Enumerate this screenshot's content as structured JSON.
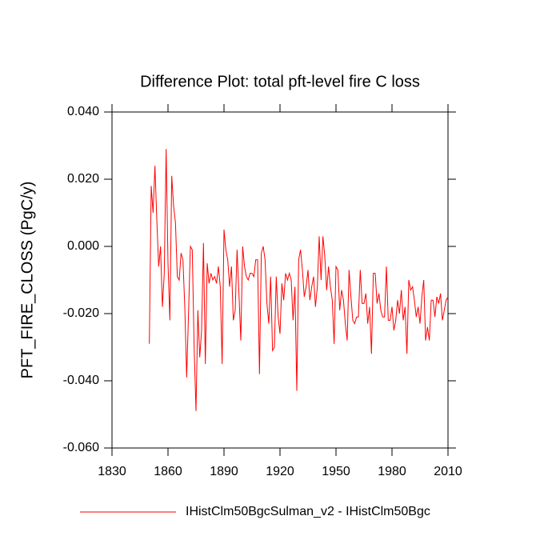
{
  "chart_data": {
    "type": "line",
    "title": "Difference Plot: total pft-level fire C loss",
    "y_label": "PFT_FIRE_CLOSS  (PgC/y)",
    "x": [
      1850,
      1851,
      1852,
      1853,
      1854,
      1855,
      1856,
      1857,
      1858,
      1859,
      1860,
      1861,
      1862,
      1863,
      1864,
      1865,
      1866,
      1867,
      1868,
      1869,
      1870,
      1871,
      1872,
      1873,
      1874,
      1875,
      1876,
      1877,
      1878,
      1879,
      1880,
      1881,
      1882,
      1883,
      1884,
      1885,
      1886,
      1887,
      1888,
      1889,
      1890,
      1891,
      1892,
      1893,
      1894,
      1895,
      1896,
      1897,
      1898,
      1899,
      1900,
      1901,
      1902,
      1903,
      1904,
      1905,
      1906,
      1907,
      1908,
      1909,
      1910,
      1911,
      1912,
      1913,
      1914,
      1915,
      1916,
      1917,
      1918,
      1919,
      1920,
      1921,
      1922,
      1923,
      1924,
      1925,
      1926,
      1927,
      1928,
      1929,
      1930,
      1931,
      1932,
      1933,
      1934,
      1935,
      1936,
      1937,
      1938,
      1939,
      1940,
      1941,
      1942,
      1943,
      1944,
      1945,
      1946,
      1947,
      1948,
      1949,
      1950,
      1951,
      1952,
      1953,
      1954,
      1955,
      1956,
      1957,
      1958,
      1959,
      1960,
      1961,
      1962,
      1963,
      1964,
      1965,
      1966,
      1967,
      1968,
      1969,
      1970,
      1971,
      1972,
      1973,
      1974,
      1975,
      1976,
      1977,
      1978,
      1979,
      1980,
      1981,
      1982,
      1983,
      1984,
      1985,
      1986,
      1987,
      1988,
      1989,
      1990,
      1991,
      1992,
      1993,
      1994,
      1995,
      1996,
      1997,
      1998,
      1999,
      2000,
      2001,
      2002,
      2003,
      2004,
      2005,
      2006,
      2007,
      2008,
      2009,
      2010
    ],
    "series": [
      {
        "name": "IHistClm50BgcSulman_v2 - IHistClm50Bgc",
        "color": "#ff0000",
        "values": [
          -0.029,
          0.018,
          0.01,
          0.024,
          0.008,
          -0.006,
          0.0,
          -0.018,
          -0.008,
          0.029,
          -0.005,
          -0.022,
          0.021,
          0.012,
          0.007,
          -0.009,
          -0.01,
          -0.002,
          -0.004,
          -0.018,
          -0.039,
          -0.02,
          0.0,
          -0.001,
          -0.03,
          -0.049,
          -0.019,
          -0.033,
          -0.025,
          0.001,
          -0.035,
          -0.005,
          -0.011,
          -0.008,
          -0.01,
          -0.009,
          -0.011,
          -0.006,
          -0.012,
          -0.035,
          0.005,
          -0.001,
          -0.004,
          -0.012,
          -0.006,
          -0.022,
          -0.019,
          -0.001,
          -0.014,
          -0.028,
          0.0,
          -0.006,
          -0.009,
          -0.01,
          -0.008,
          -0.008,
          -0.009,
          -0.004,
          -0.004,
          -0.038,
          -0.002,
          0.0,
          -0.004,
          -0.017,
          -0.023,
          -0.009,
          -0.031,
          -0.03,
          -0.009,
          -0.021,
          -0.026,
          -0.011,
          -0.016,
          -0.008,
          -0.01,
          -0.008,
          -0.01,
          -0.022,
          -0.012,
          -0.043,
          -0.004,
          -0.001,
          -0.007,
          -0.015,
          -0.012,
          -0.007,
          -0.016,
          -0.012,
          -0.009,
          -0.018,
          -0.012,
          0.003,
          -0.01,
          0.003,
          -0.003,
          -0.013,
          -0.006,
          -0.012,
          -0.016,
          -0.029,
          -0.006,
          -0.007,
          -0.019,
          -0.013,
          -0.016,
          -0.023,
          -0.028,
          -0.007,
          -0.015,
          -0.022,
          -0.023,
          -0.021,
          -0.021,
          -0.007,
          -0.017,
          -0.017,
          -0.014,
          -0.023,
          -0.018,
          -0.032,
          -0.008,
          -0.008,
          -0.017,
          -0.014,
          -0.019,
          -0.021,
          -0.021,
          -0.006,
          -0.022,
          -0.022,
          -0.018,
          -0.025,
          -0.022,
          -0.016,
          -0.02,
          -0.013,
          -0.022,
          -0.018,
          -0.032,
          -0.01,
          -0.013,
          -0.012,
          -0.016,
          -0.021,
          -0.018,
          -0.023,
          -0.015,
          -0.01,
          -0.028,
          -0.024,
          -0.028,
          -0.016,
          -0.016,
          -0.021,
          -0.015,
          -0.017,
          -0.014,
          -0.022,
          -0.019,
          -0.016,
          -0.015
        ]
      }
    ],
    "xlim": [
      1830,
      2010
    ],
    "xticks": [
      1830,
      1860,
      1890,
      1920,
      1950,
      1980,
      2010
    ],
    "ylim": [
      -0.06,
      0.04
    ],
    "yticks": [
      {
        "value": -0.06,
        "label": "-0.060"
      },
      {
        "value": -0.04,
        "label": "-0.040"
      },
      {
        "value": -0.02,
        "label": "-0.020"
      },
      {
        "value": 0,
        "label": "0.000"
      },
      {
        "value": 0.02,
        "label": "0.020"
      },
      {
        "value": 0.04,
        "label": "0.040"
      }
    ]
  }
}
